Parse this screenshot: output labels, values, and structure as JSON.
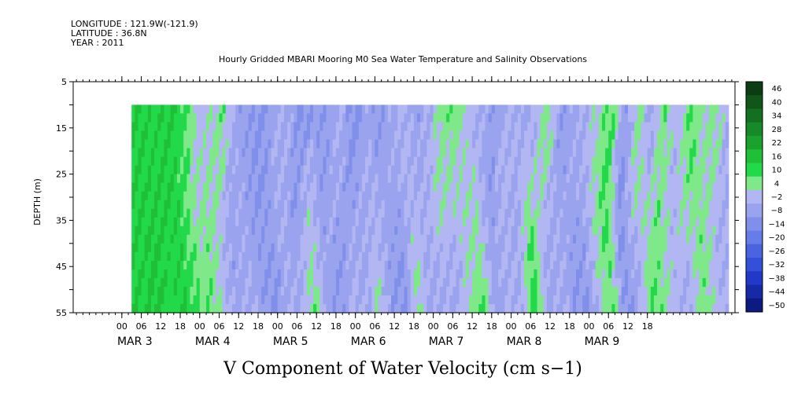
{
  "header": {
    "longitude": "LONGITUDE : 121.9W(-121.9)",
    "latitude": "LATITUDE : 36.8N",
    "year": "YEAR : 2011",
    "title": "Hourly Gridded MBARI Mooring M0 Sea Water Temperature and Salinity Observations"
  },
  "chart_data": {
    "type": "heatmap",
    "title": "Hourly Gridded MBARI Mooring M0 Sea Water Temperature and Salinity Observations",
    "xlabel": "",
    "ylabel": "DEPTH (m)",
    "variable_label": "V Component of Water Velocity (cm s−1)",
    "x_range_hours": [
      -15,
      189
    ],
    "data_start_hour": 3,
    "data_end_hour": 187,
    "y_range": [
      5,
      55
    ],
    "y_inverted": true,
    "data_depth_range": [
      10,
      55
    ],
    "y_ticks": [
      5,
      15,
      25,
      35,
      45,
      55
    ],
    "x_tick_labels": [
      "00",
      "06",
      "12",
      "18",
      "00",
      "06",
      "12",
      "18",
      "00",
      "06",
      "12",
      "18",
      "00",
      "06",
      "12",
      "18",
      "00",
      "06",
      "12",
      "18",
      "00",
      "06",
      "12",
      "18",
      "00",
      "06",
      "12",
      "18"
    ],
    "day_labels": [
      "MAR  3",
      "MAR  4",
      "MAR  5",
      "MAR  6",
      "MAR  7",
      "MAR  8",
      "MAR  9"
    ],
    "colorbar_labels": [
      "46",
      "40",
      "34",
      "28",
      "22",
      "16",
      "10",
      "4",
      "−2",
      "−8",
      "−14",
      "−20",
      "−26",
      "−32",
      "−38",
      "−44",
      "−50"
    ],
    "colorbar_range": [
      -50,
      49
    ],
    "time_profile_hours": [
      3,
      7,
      11,
      15,
      19,
      21,
      23,
      27,
      31,
      35,
      39,
      43,
      47,
      51,
      55,
      59,
      63,
      67,
      71,
      75,
      79,
      83,
      87,
      91,
      95,
      99,
      103,
      107,
      111,
      115,
      119,
      123,
      127,
      131,
      135,
      139,
      143,
      147,
      151,
      155,
      159,
      163,
      167,
      171,
      175,
      179,
      183,
      187
    ],
    "surface_values": [
      14,
      12,
      11,
      13,
      8,
      6,
      -3,
      0,
      6,
      -8,
      -10,
      -12,
      -6,
      -4,
      -15,
      -8,
      -10,
      -4,
      -14,
      -8,
      -10,
      -6,
      -4,
      -9,
      -3,
      6,
      4,
      -4,
      -6,
      -10,
      -2,
      -8,
      -4,
      6,
      -10,
      -6,
      -4,
      2,
      10,
      -12,
      4,
      -8,
      6,
      -3,
      8,
      2,
      4,
      -6
    ],
    "bottom_values": [
      12,
      14,
      10,
      13,
      8,
      4,
      6,
      -2,
      -8,
      -4,
      -9,
      -12,
      -5,
      -6,
      6,
      -8,
      -10,
      -4,
      -6,
      2,
      -10,
      -12,
      4,
      -8,
      -6,
      -6,
      2,
      8,
      -10,
      -4,
      -6,
      12,
      -8,
      -4,
      -10,
      -12,
      -2,
      8,
      -14,
      -6,
      6,
      4,
      -4,
      -6,
      6,
      -2,
      -4,
      -6
    ]
  },
  "colors": {
    "background": "#ffffff",
    "axis": "#000000"
  }
}
